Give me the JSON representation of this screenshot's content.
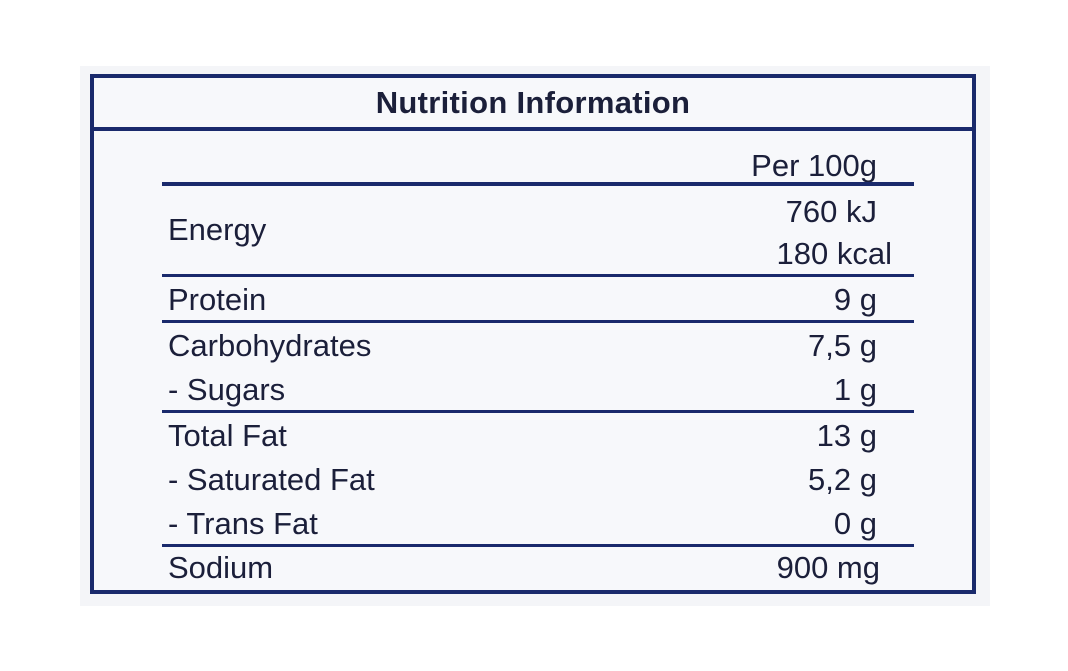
{
  "title": "Nutrition Information",
  "column_header": "Per 100g",
  "rows": [
    {
      "label": "Energy",
      "values": [
        "760 kJ",
        "180 kcal"
      ]
    },
    {
      "label": "Protein",
      "value": "9 g"
    },
    {
      "label": "Carbohydrates",
      "value": "7,5 g"
    },
    {
      "label": "-  Sugars",
      "value": "1 g"
    },
    {
      "label": "Total Fat",
      "value": "13 g"
    },
    {
      "label": "-  Saturated Fat",
      "value": "5,2 g"
    },
    {
      "label": "-  Trans Fat",
      "value": "0 g"
    },
    {
      "label": "Sodium",
      "value": "900 mg"
    }
  ],
  "colors": {
    "border": "#1a2a6c",
    "text": "#1b1f3a",
    "background": "#f7f8fb"
  }
}
